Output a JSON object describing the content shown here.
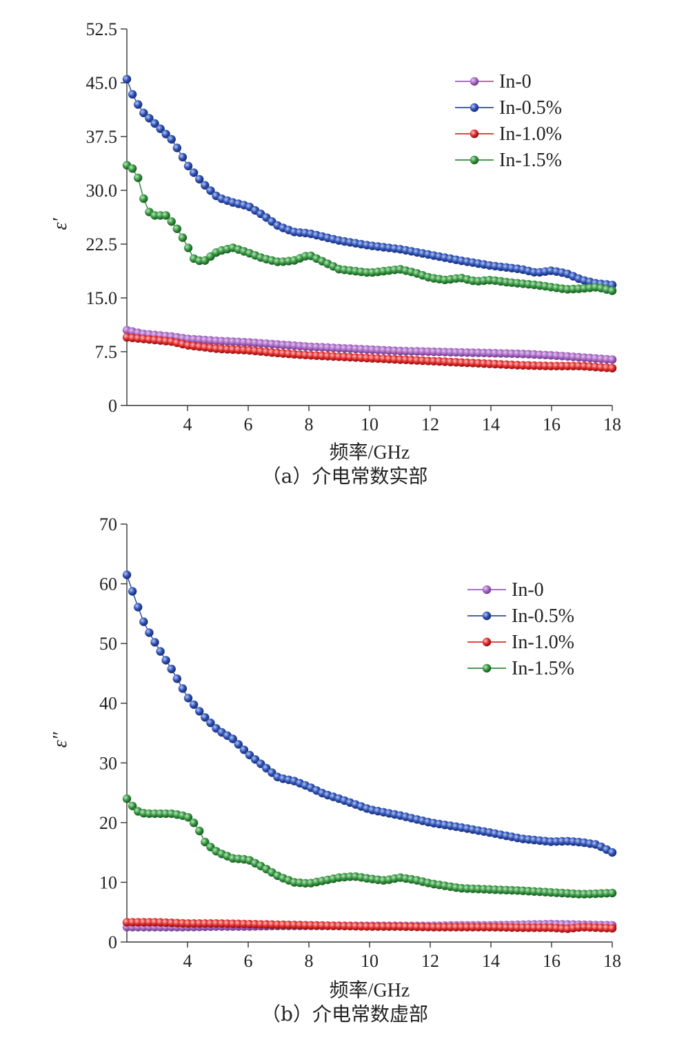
{
  "colors": {
    "In-0": "#9b59b6",
    "In-0.5%": "#2a4aa8",
    "In-1.0%": "#e02828",
    "In-1.5%": "#2f8a3a"
  },
  "chart_data": [
    {
      "type": "line",
      "caption": "（a）介电常数实部",
      "xlabel": "频率/GHz",
      "ylabel": "ε′",
      "xlim": [
        2,
        18
      ],
      "ylim": [
        0,
        52.5
      ],
      "xticks": [
        4,
        6,
        8,
        10,
        12,
        14,
        16,
        18
      ],
      "yticks": [
        0,
        7.5,
        15.0,
        22.5,
        30.0,
        37.5,
        45.0,
        52.5
      ],
      "ytick_labels": [
        "0",
        "7.5",
        "15.0",
        "22.5",
        "30.0",
        "37.5",
        "45.0",
        "52.5"
      ],
      "legend_position": "top-right",
      "series": [
        {
          "name": "In-0",
          "x": [
            2,
            2.5,
            3,
            3.5,
            4,
            5,
            6,
            7,
            8,
            9,
            10,
            11,
            12,
            13,
            14,
            15,
            16,
            17,
            18
          ],
          "values": [
            10.5,
            10.0,
            9.8,
            9.6,
            9.3,
            9.0,
            8.8,
            8.5,
            8.2,
            8.0,
            7.8,
            7.6,
            7.5,
            7.4,
            7.3,
            7.2,
            7.0,
            6.7,
            6.4
          ]
        },
        {
          "name": "In-0.5%",
          "x": [
            2,
            2.2,
            2.5,
            3,
            3.5,
            4,
            4.5,
            5,
            5.5,
            6,
            6.5,
            7,
            7.5,
            8,
            9,
            10,
            11,
            12,
            13,
            14,
            15,
            15.5,
            16,
            16.5,
            17,
            17.5,
            18
          ],
          "values": [
            45.5,
            43.2,
            41.0,
            39.0,
            37.0,
            33.5,
            31.0,
            29.0,
            28.3,
            27.8,
            26.5,
            25.0,
            24.2,
            24.0,
            23.0,
            22.3,
            21.8,
            21.0,
            20.2,
            19.5,
            19.0,
            18.5,
            18.8,
            18.4,
            17.5,
            17.0,
            16.8
          ]
        },
        {
          "name": "In-1.0%",
          "x": [
            2,
            2.5,
            3,
            3.5,
            4,
            5,
            6,
            7,
            8,
            9,
            10,
            11,
            12,
            13,
            14,
            15,
            16,
            17,
            18
          ],
          "values": [
            9.5,
            9.3,
            9.1,
            8.9,
            8.4,
            7.9,
            7.7,
            7.3,
            7.0,
            6.8,
            6.6,
            6.4,
            6.2,
            6.0,
            5.8,
            5.6,
            5.5,
            5.5,
            5.2
          ]
        },
        {
          "name": "In-1.5%",
          "x": [
            2,
            2.2,
            2.4,
            2.6,
            2.8,
            3,
            3.3,
            3.6,
            3.9,
            4.2,
            4.5,
            5,
            5.5,
            6,
            6.5,
            7,
            7.5,
            8,
            8.5,
            9,
            10,
            11,
            11.5,
            12,
            12.5,
            13,
            13.5,
            14,
            14.5,
            15,
            15.5,
            16,
            16.5,
            17,
            17.5,
            18
          ],
          "values": [
            33.5,
            33.0,
            31.5,
            28.0,
            26.5,
            26.5,
            26.5,
            25.0,
            23.0,
            20.5,
            20.0,
            21.5,
            22.0,
            21.3,
            20.5,
            20.0,
            20.2,
            21.0,
            20.0,
            19.0,
            18.5,
            19.0,
            18.5,
            17.8,
            17.5,
            17.8,
            17.3,
            17.5,
            17.2,
            17.0,
            16.8,
            16.5,
            16.2,
            16.3,
            16.5,
            16.0
          ]
        }
      ]
    },
    {
      "type": "line",
      "caption": "（b）介电常数虚部",
      "xlabel": "频率/GHz",
      "ylabel": "ε″",
      "xlim": [
        2,
        18
      ],
      "ylim": [
        0,
        70
      ],
      "xticks": [
        4,
        6,
        8,
        10,
        12,
        14,
        16,
        18
      ],
      "yticks": [
        0,
        10,
        20,
        30,
        40,
        50,
        60,
        70
      ],
      "ytick_labels": [
        "0",
        "10",
        "20",
        "30",
        "40",
        "50",
        "60",
        "70"
      ],
      "legend_position": "top-right",
      "series": [
        {
          "name": "In-0",
          "x": [
            2,
            3,
            4,
            5,
            6,
            7,
            8,
            9,
            10,
            11,
            12,
            13,
            14,
            15,
            16,
            17,
            18
          ],
          "values": [
            2.5,
            2.5,
            2.5,
            2.6,
            2.6,
            2.7,
            2.7,
            2.7,
            2.7,
            2.7,
            2.7,
            2.8,
            2.8,
            2.9,
            3.0,
            2.9,
            2.8
          ]
        },
        {
          "name": "In-0.5%",
          "x": [
            2,
            2.3,
            2.6,
            3,
            3.5,
            4,
            4.5,
            5,
            5.5,
            6,
            6.5,
            7,
            7.5,
            8,
            8.5,
            9,
            10,
            11,
            12,
            13,
            14,
            15,
            16,
            16.5,
            17,
            17.5,
            18
          ],
          "values": [
            61.5,
            57.0,
            53.0,
            49.5,
            45.5,
            41.0,
            38.0,
            35.5,
            34.0,
            31.5,
            29.5,
            27.5,
            27.0,
            26.0,
            24.8,
            24.0,
            22.2,
            21.2,
            20.0,
            19.2,
            18.3,
            17.3,
            16.8,
            16.9,
            16.7,
            16.3,
            15.0
          ]
        },
        {
          "name": "In-1.0%",
          "x": [
            2,
            3,
            4,
            5,
            6,
            7,
            8,
            9,
            10,
            11,
            12,
            13,
            14,
            15,
            16,
            16.5,
            17,
            18
          ],
          "values": [
            3.3,
            3.3,
            3.1,
            3.1,
            3.0,
            2.9,
            2.8,
            2.7,
            2.6,
            2.6,
            2.5,
            2.5,
            2.5,
            2.4,
            2.4,
            2.2,
            2.5,
            2.3
          ]
        },
        {
          "name": "In-1.5%",
          "x": [
            2,
            2.3,
            2.6,
            3,
            3.5,
            4,
            4.3,
            4.6,
            5,
            5.5,
            6,
            6.5,
            7,
            7.5,
            8,
            8.5,
            9,
            9.5,
            10,
            10.5,
            11,
            11.5,
            12,
            13,
            14,
            15,
            16,
            17,
            18
          ],
          "values": [
            24.0,
            22.0,
            21.5,
            21.5,
            21.5,
            21.0,
            19.5,
            16.5,
            15.0,
            14.0,
            13.8,
            12.5,
            11.0,
            10.0,
            9.8,
            10.3,
            10.8,
            11.0,
            10.6,
            10.3,
            10.8,
            10.4,
            9.8,
            9.0,
            8.8,
            8.6,
            8.3,
            8.0,
            8.2
          ]
        }
      ]
    }
  ]
}
